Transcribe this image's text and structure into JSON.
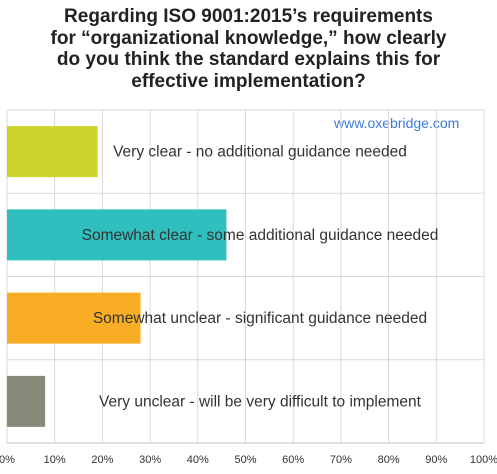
{
  "title_lines": [
    "Regarding ISO 9001:2015’s requirements",
    "for “organizational knowledge,” how clearly",
    "do you think the standard explains this for",
    "effective implementation?"
  ],
  "watermark": "www.oxebridge.com",
  "chart_data": {
    "type": "bar",
    "orientation": "horizontal",
    "title": "Regarding ISO 9001:2015’s requirements for “organizational knowledge,” how clearly do you think the standard explains this for effective implementation?",
    "categories": [
      "Very clear - no additional guidance needed",
      "Somewhat clear - some additional guidance needed",
      "Somewhat unclear - significant guidance needed",
      "Very unclear - will be very difficult to implement"
    ],
    "values": [
      19,
      46,
      28,
      8
    ],
    "colors": [
      "#ccd42c",
      "#2fbfbf",
      "#f8ad24",
      "#868a78"
    ],
    "xlim": [
      0,
      100
    ],
    "x_ticks": [
      "0%",
      "10%",
      "20%",
      "30%",
      "40%",
      "50%",
      "60%",
      "70%",
      "80%",
      "90%",
      "100%"
    ],
    "grid": true,
    "legend": "none"
  }
}
